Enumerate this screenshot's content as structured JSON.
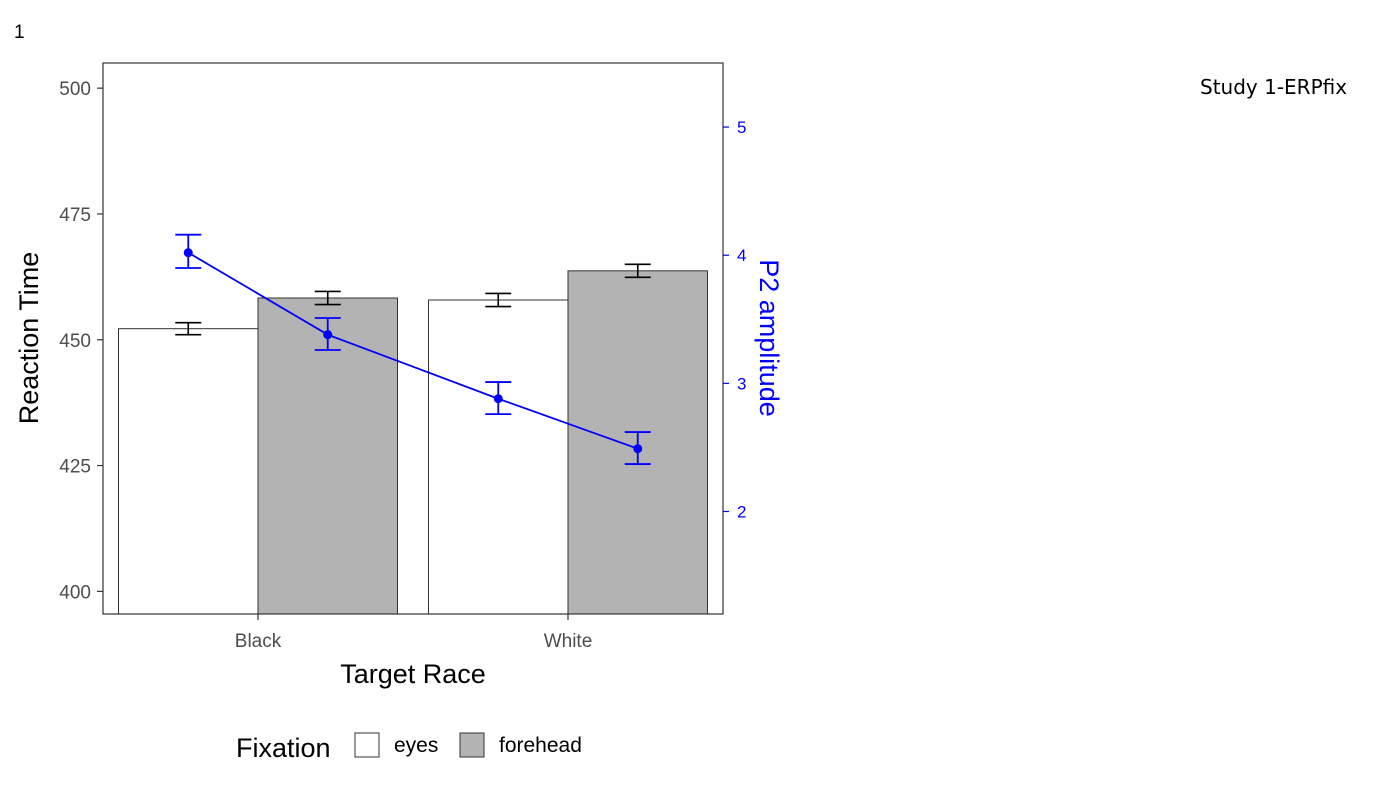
{
  "page": {
    "number": "1",
    "study_label": "Study 1-ERPfix"
  },
  "chart_data": {
    "type": "bar",
    "title": "",
    "xlabel": "Target Race",
    "ylabel": "Reaction Time",
    "ylim": [
      395.5,
      505
    ],
    "yticks": [
      400,
      425,
      450,
      475,
      500
    ],
    "categories": [
      "Black",
      "White"
    ],
    "legend": {
      "title": "Fixation",
      "position": "bottom"
    },
    "series": [
      {
        "name": "eyes",
        "color": "#ffffff",
        "values": [
          452.2,
          457.9
        ],
        "err_low": [
          451.0,
          456.6
        ],
        "err_high": [
          453.4,
          459.2
        ]
      },
      {
        "name": "forehead",
        "color": "#b3b3b3",
        "values": [
          458.3,
          463.7
        ],
        "err_low": [
          457.0,
          462.4
        ],
        "err_high": [
          459.6,
          465.0
        ]
      }
    ],
    "secondary_axis": {
      "label": "P2 amplitude",
      "color": "#0000ff",
      "ylim": [
        1.2,
        5.5
      ],
      "ticks": [
        2,
        3,
        4,
        5
      ],
      "points": [
        {
          "category": "Black",
          "group": "eyes",
          "value": 4.02,
          "err_low": 3.9,
          "err_high": 4.16
        },
        {
          "category": "Black",
          "group": "forehead",
          "value": 3.38,
          "err_low": 3.26,
          "err_high": 3.51
        },
        {
          "category": "White",
          "group": "eyes",
          "value": 2.88,
          "err_low": 2.76,
          "err_high": 3.01
        },
        {
          "category": "White",
          "group": "forehead",
          "value": 2.49,
          "err_low": 2.37,
          "err_high": 2.62
        }
      ]
    }
  }
}
